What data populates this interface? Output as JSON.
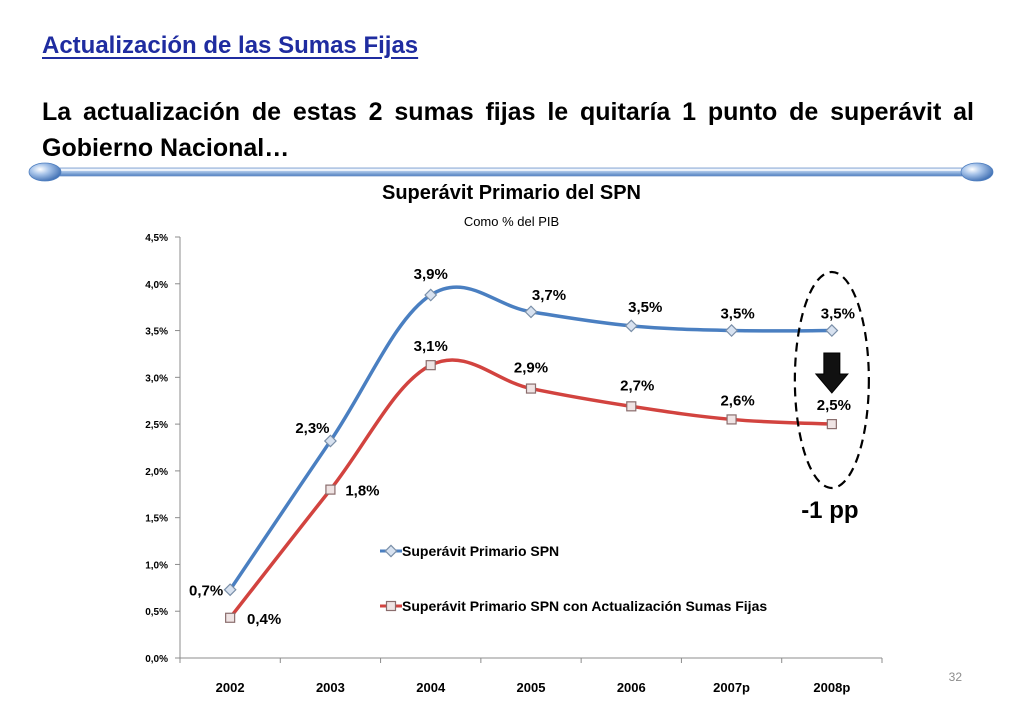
{
  "slide": {
    "title": "Actualización de las Sumas Fijas",
    "headline": "La actualización de estas 2 sumas fijas le quitaría 1 punto de superávit al Gobierno Nacional…",
    "page_number": "32"
  },
  "colors": {
    "title": "#1f2ca0",
    "series_blue": "#4a7fc1",
    "series_red": "#d2433f",
    "divider": "#5b88c7"
  },
  "chart_data": {
    "type": "line",
    "title": "Superávit Primario del SPN",
    "subtitle": "Como % del PIB",
    "categories": [
      "2002",
      "2003",
      "2004",
      "2005",
      "2006",
      "2007p",
      "2008p"
    ],
    "ylim": [
      0,
      4.5
    ],
    "yticks": [
      0,
      0.5,
      1.0,
      1.5,
      2.0,
      2.5,
      3.0,
      3.5,
      4.0,
      4.5
    ],
    "ytick_labels": [
      "0,0%",
      "0,5%",
      "1,0%",
      "1,5%",
      "2,0%",
      "2,5%",
      "3,0%",
      "3,5%",
      "4,0%",
      "4,5%"
    ],
    "grid": false,
    "series": [
      {
        "name": "Superávit Primario SPN",
        "values": [
          0.73,
          2.32,
          3.88,
          3.7,
          3.55,
          3.5,
          3.5
        ],
        "labels": [
          "0,7%",
          "2,3%",
          "3,9%",
          "3,7%",
          "3,5%",
          "3,5%",
          "3,5%"
        ]
      },
      {
        "name": "Superávit Primario SPN con Actualización Sumas Fijas",
        "values": [
          0.43,
          1.8,
          3.13,
          2.88,
          2.69,
          2.55,
          2.5
        ],
        "labels": [
          "0,4%",
          "1,8%",
          "3,1%",
          "2,9%",
          "2,7%",
          "2,6%",
          "2,5%"
        ]
      }
    ],
    "annotation": {
      "text": "-1 pp",
      "category": "2008p",
      "arrow": "down"
    }
  }
}
